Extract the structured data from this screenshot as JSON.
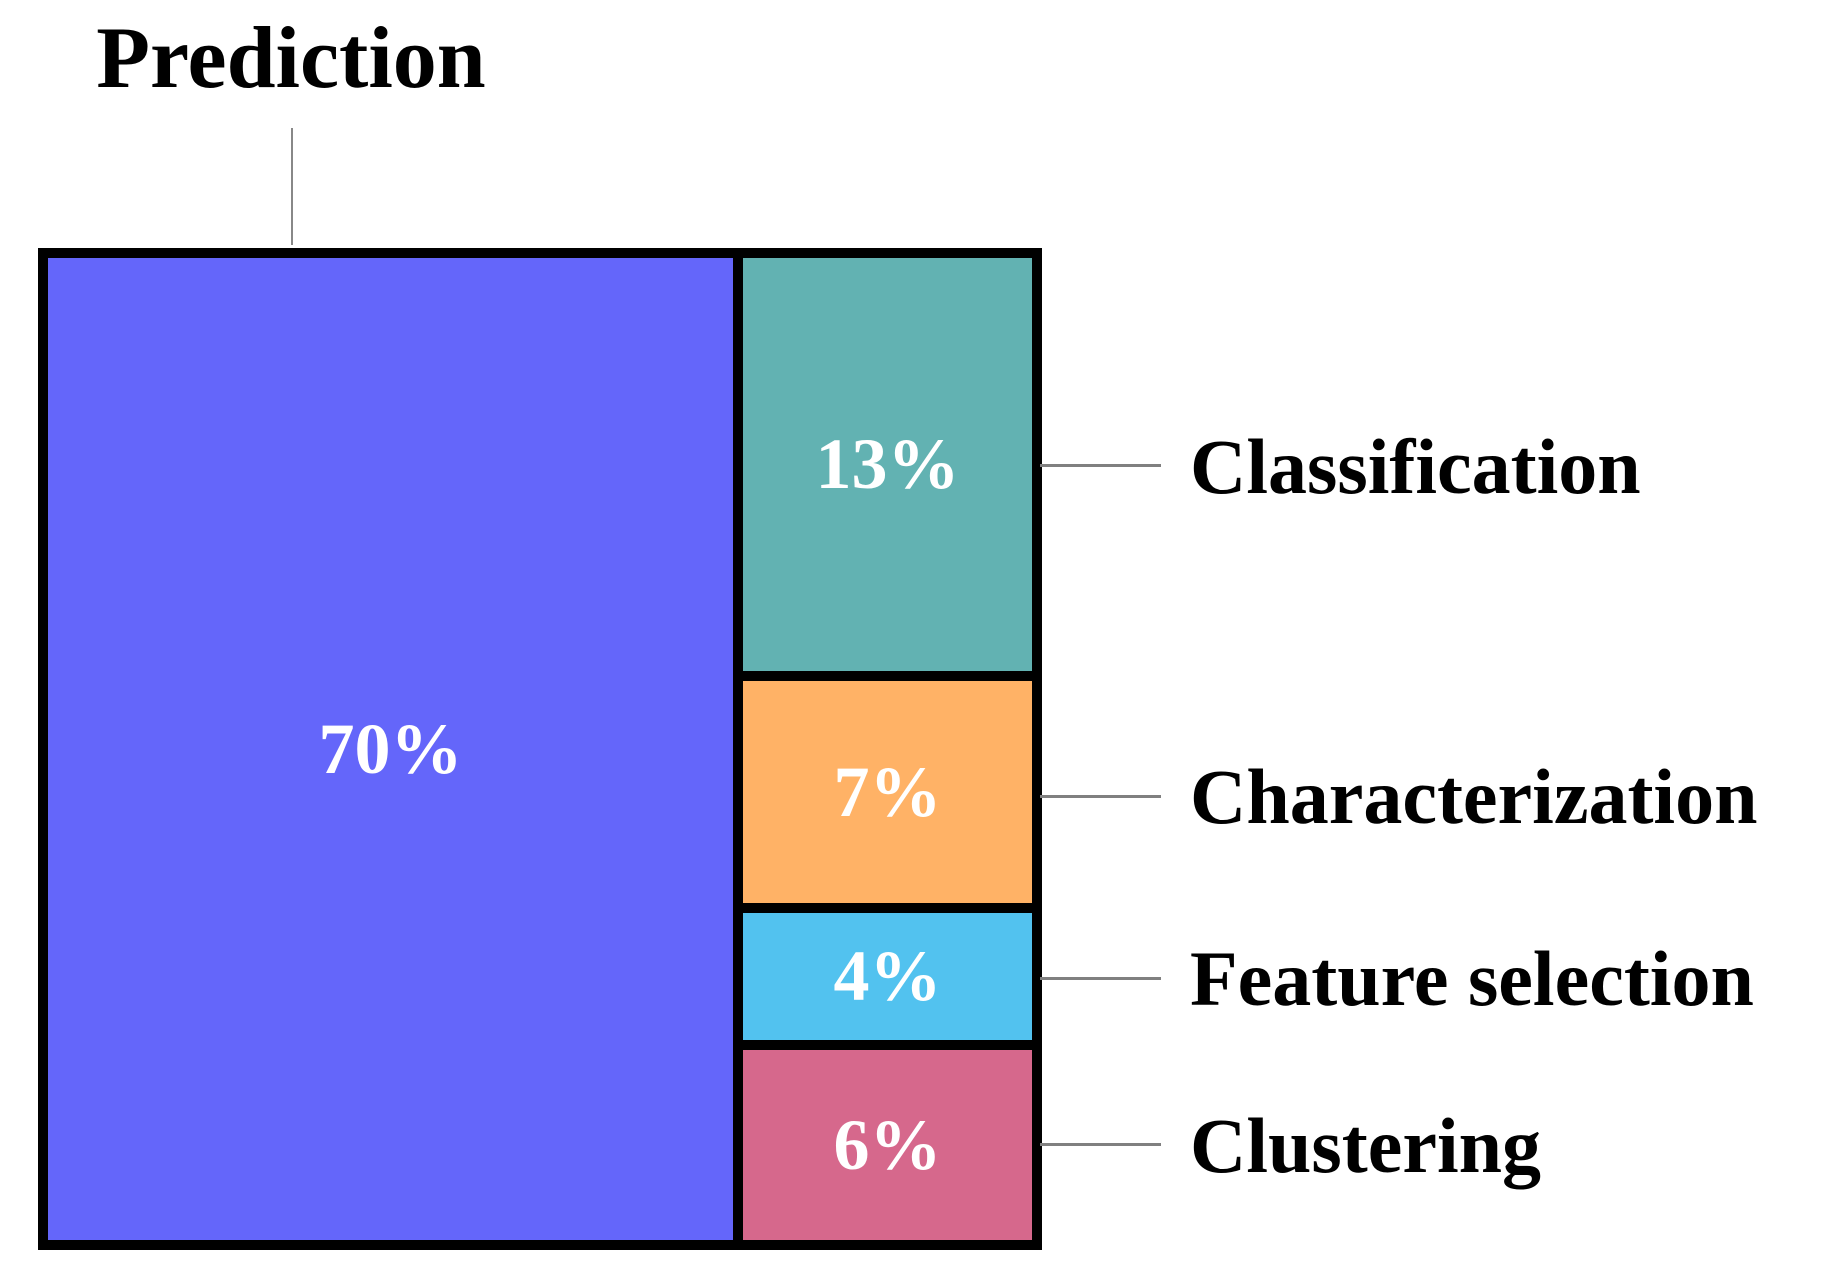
{
  "chart_data": {
    "type": "treemap",
    "title": "Prediction",
    "unit": "%",
    "items": [
      {
        "label": "Prediction",
        "value": 70,
        "pct_label": "70%",
        "color": "#6466FA",
        "label_placement": "title-top"
      },
      {
        "label": "Classification",
        "value": 13,
        "pct_label": "13%",
        "color": "#62B2B2",
        "label_placement": "right"
      },
      {
        "label": "Characterization",
        "value": 7,
        "pct_label": "7%",
        "color": "#FFB266",
        "label_placement": "right"
      },
      {
        "label": "Feature selection",
        "value": 4,
        "pct_label": "4%",
        "color": "#52C2EF",
        "label_placement": "right"
      },
      {
        "label": "Clustering",
        "value": 6,
        "pct_label": "6%",
        "color": "#D6688C",
        "label_placement": "right"
      }
    ],
    "colors": {
      "border": "#000000",
      "leader_line": "#808080",
      "value_text": "#FFFFFF",
      "label_text": "#000000",
      "background": "#FFFFFF"
    },
    "layout": {
      "value_labels": "inside-center",
      "category_labels": "right",
      "title_position": "top-left-above-chart",
      "grid": false
    }
  }
}
